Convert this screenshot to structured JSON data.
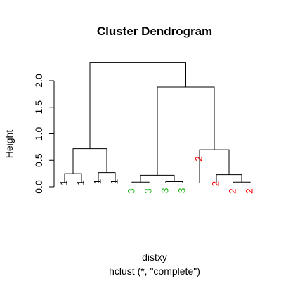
{
  "chart_data": {
    "type": "dendrogram",
    "title": "Cluster Dendrogram",
    "ylabel": "Height",
    "xlabel": "distxy",
    "sub": "hclust (*, \"complete\")",
    "ylim": [
      0,
      2.35
    ],
    "yticks": [
      "0.0",
      "0.5",
      "1.0",
      "1.5",
      "2.0"
    ],
    "ytick_values": [
      0,
      0.5,
      1.0,
      1.5,
      2.0
    ],
    "leaves": [
      {
        "label": "1",
        "color": "#000000"
      },
      {
        "label": "1",
        "color": "#000000"
      },
      {
        "label": "1",
        "color": "#000000"
      },
      {
        "label": "1",
        "color": "#000000"
      },
      {
        "label": "3",
        "color": "#22b522"
      },
      {
        "label": "3",
        "color": "#22b522"
      },
      {
        "label": "3",
        "color": "#22b522"
      },
      {
        "label": "3",
        "color": "#22b522"
      },
      {
        "label": "2",
        "color": "#ff0000"
      },
      {
        "label": "2",
        "color": "#ff0000"
      },
      {
        "label": "2",
        "color": "#ff0000"
      },
      {
        "label": "2",
        "color": "#ff0000"
      }
    ],
    "merges": [
      {
        "left": 0,
        "right": 1,
        "height": 0.25
      },
      {
        "left": 2,
        "right": 3,
        "height": 0.27
      },
      {
        "left": 4,
        "right": 5,
        "height": 0.09
      },
      {
        "left": 6,
        "right": 7,
        "height": 0.1
      },
      {
        "left": 10,
        "right": 11,
        "height": 0.09
      },
      {
        "left": 9,
        "right": "m4",
        "height": 0.23
      },
      {
        "left": "m0",
        "right": "m1",
        "height": 0.72
      },
      {
        "left": "m2",
        "right": "m3",
        "height": 0.22
      },
      {
        "left": 8,
        "right": "m5",
        "height": 0.7
      },
      {
        "left": "m7",
        "right": "m8",
        "height": 1.88
      },
      {
        "left": "m6",
        "right": "m9",
        "height": 2.35
      }
    ]
  }
}
